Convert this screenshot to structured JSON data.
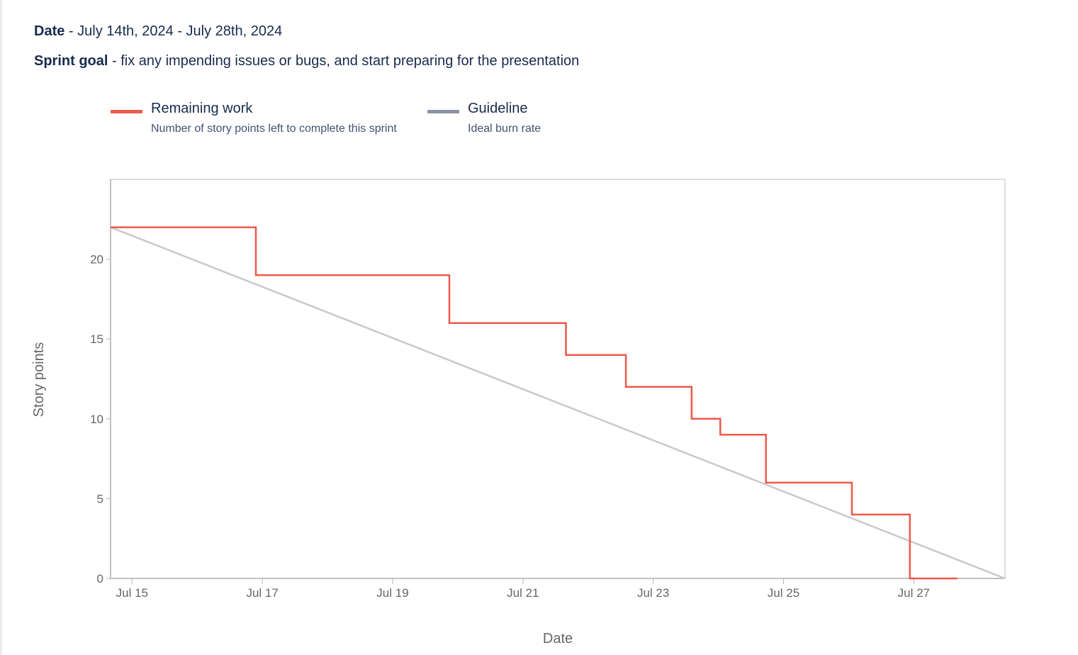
{
  "header": {
    "date_label": "Date",
    "date_value": " - July 14th, 2024 - July 28th, 2024",
    "goal_label": "Sprint goal",
    "goal_value": " - fix any impending issues or bugs, and start preparing for the presentation"
  },
  "legend": [
    {
      "name": "Remaining work",
      "description": "Number of story points left to complete this sprint",
      "color": "#eb5a4b"
    },
    {
      "name": "Guideline",
      "description": "Ideal burn rate",
      "color": "#8993a4"
    }
  ],
  "chart_data": {
    "type": "line",
    "xlabel": "Date",
    "ylabel": "Story points",
    "x_ticks": [
      "Jul 15",
      "Jul 17",
      "Jul 19",
      "Jul 21",
      "Jul 23",
      "Jul 25",
      "Jul 27"
    ],
    "x_tick_values": [
      1,
      3,
      5,
      7,
      9,
      11,
      13
    ],
    "y_ticks": [
      0,
      5,
      10,
      15,
      20
    ],
    "xlim": [
      0.67,
      14.4
    ],
    "ylim": [
      0,
      25
    ],
    "grid": false,
    "series": [
      {
        "name": "Remaining work",
        "step": "post",
        "color": "#eb5a4b",
        "points": [
          [
            0.67,
            22
          ],
          [
            2.9,
            19
          ],
          [
            5.87,
            16
          ],
          [
            7.66,
            14
          ],
          [
            8.58,
            12
          ],
          [
            9.59,
            10
          ],
          [
            10.03,
            9
          ],
          [
            10.73,
            6
          ],
          [
            12.05,
            4
          ],
          [
            12.94,
            0
          ],
          [
            13.67,
            0
          ]
        ]
      },
      {
        "name": "Guideline",
        "color": "#c9c9c9",
        "points": [
          [
            0.67,
            22
          ],
          [
            14.4,
            0
          ]
        ]
      }
    ]
  }
}
